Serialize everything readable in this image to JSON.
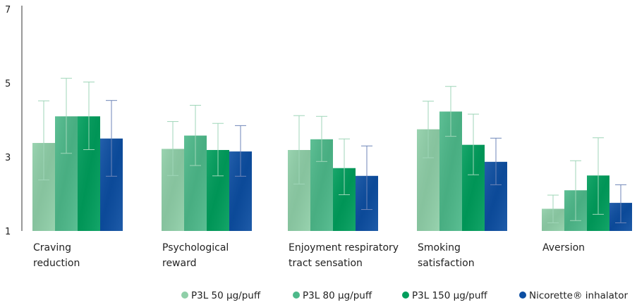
{
  "chart_data": {
    "type": "bar",
    "categories": [
      [
        "Craving",
        "reduction"
      ],
      [
        "Psychological",
        "reward"
      ],
      [
        "Enjoyment respiratory",
        "tract sensation"
      ],
      [
        "Smoking",
        "satisfaction"
      ],
      [
        "Aversion"
      ]
    ],
    "ylim": [
      1,
      7
    ],
    "yticks": [
      "1",
      "3",
      "5",
      "7"
    ],
    "series": [
      {
        "name": "P3L 50 µg/puff",
        "color": "#8fcfa8",
        "values": [
          3.38,
          3.22,
          3.19,
          3.75,
          1.6
        ],
        "err_low": [
          2.38,
          2.5,
          2.27,
          2.98,
          1.22
        ],
        "err_high": [
          4.52,
          3.96,
          4.12,
          4.51,
          1.97
        ]
      },
      {
        "name": "P3L 80 µg/puff",
        "color": "#4db98a",
        "values": [
          4.1,
          3.58,
          3.48,
          4.23,
          2.1
        ],
        "err_low": [
          3.1,
          2.77,
          2.88,
          3.56,
          1.28
        ],
        "err_high": [
          5.13,
          4.4,
          4.1,
          4.91,
          2.9
        ]
      },
      {
        "name": "P3L 150 µg/puff",
        "color": "#009e5c",
        "values": [
          4.1,
          3.19,
          2.7,
          3.33,
          2.5
        ],
        "err_low": [
          3.2,
          2.49,
          1.98,
          2.52,
          1.45
        ],
        "err_high": [
          5.03,
          3.91,
          3.49,
          4.16,
          3.52
        ]
      },
      {
        "name": "Nicorette® inhalator",
        "color": "#0c4ea2",
        "values": [
          3.5,
          3.15,
          2.49,
          2.87,
          1.76
        ],
        "err_low": [
          2.48,
          2.48,
          1.58,
          2.25,
          1.22
        ],
        "err_high": [
          4.53,
          3.85,
          3.3,
          3.51,
          2.25
        ]
      }
    ],
    "legend_position": "bottom-right",
    "grid": false,
    "xlabel": "",
    "ylabel": ""
  }
}
